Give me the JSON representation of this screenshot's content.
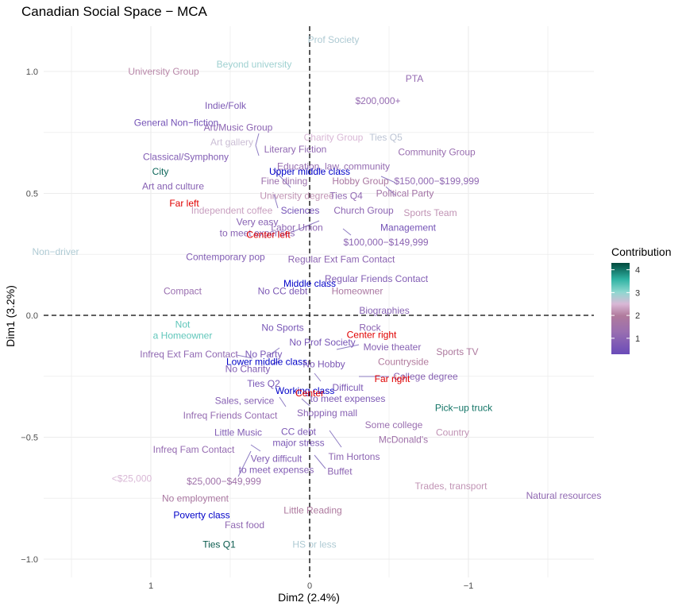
{
  "chart_data": {
    "type": "scatter",
    "title": "Canadian Social Space − MCA",
    "xlabel": "Dim2 (2.4%)",
    "ylabel": "Dim1 (3.2%)",
    "x_reversed": true,
    "xlim": [
      1.5,
      -1.78
    ],
    "ylim": [
      -1.07,
      1.18
    ],
    "x_ticks": [
      {
        "value": 1,
        "label": "1"
      },
      {
        "value": 0,
        "label": "0"
      },
      {
        "value": -1,
        "label": "−1"
      }
    ],
    "y_ticks": [
      {
        "value": 1.0,
        "label": "1.0"
      },
      {
        "value": 0.5,
        "label": "0.5"
      },
      {
        "value": 0.0,
        "label": "0.0"
      },
      {
        "value": -0.5,
        "label": "−0.5"
      },
      {
        "value": -1.0,
        "label": "−1.0"
      }
    ],
    "grid": true,
    "reference_lines": {
      "x": 0,
      "y": 0,
      "style": "dashed"
    },
    "legend": {
      "title": "Contribution",
      "placement": "right",
      "ticks": [
        1,
        2,
        3,
        4
      ],
      "range": [
        0.3,
        4.3
      ],
      "colors": [
        {
          "stop": 0.0,
          "color": "#6a4bb8"
        },
        {
          "stop": 0.25,
          "color": "#9a6fb0"
        },
        {
          "stop": 0.42,
          "color": "#b07a9c"
        },
        {
          "stop": 0.55,
          "color": "#d9b8d6"
        },
        {
          "stop": 0.68,
          "color": "#8ed8d0"
        },
        {
          "stop": 0.82,
          "color": "#2fb3a3"
        },
        {
          "stop": 1.0,
          "color": "#00493d"
        }
      ]
    },
    "points": [
      {
        "label": "Prof Society",
        "x": -0.15,
        "y": 1.13,
        "contrib": 2.8
      },
      {
        "label": "Beyond university",
        "x": 0.35,
        "y": 1.03,
        "contrib": 2.9
      },
      {
        "label": "University Group",
        "x": 0.92,
        "y": 1.0,
        "contrib": 2.1
      },
      {
        "label": "PTA",
        "x": -0.66,
        "y": 0.97,
        "contrib": 1.2
      },
      {
        "label": "$200,000+",
        "x": -0.43,
        "y": 0.88,
        "contrib": 1.2
      },
      {
        "label": "Indie/Folk",
        "x": 0.53,
        "y": 0.86,
        "contrib": 0.7
      },
      {
        "label": "General Non−fiction",
        "x": 0.84,
        "y": 0.79,
        "contrib": 0.5
      },
      {
        "label": "Art/Music Group",
        "x": 0.45,
        "y": 0.77,
        "contrib": 1.0
      },
      {
        "label": "Charity Group",
        "x": -0.15,
        "y": 0.73,
        "contrib": 2.5
      },
      {
        "label": "Ties Q5",
        "x": -0.48,
        "y": 0.73,
        "contrib": 2.7
      },
      {
        "label": "Art gallery",
        "x": 0.49,
        "y": 0.71,
        "contrib": 2.6
      },
      {
        "label": "Literary Fiction",
        "x": 0.09,
        "y": 0.68,
        "contrib": 1.1
      },
      {
        "label": "Community Group",
        "x": -0.8,
        "y": 0.67,
        "contrib": 1.3
      },
      {
        "label": "Classical/Symphony",
        "x": 0.78,
        "y": 0.65,
        "contrib": 0.8
      },
      {
        "label": "Education, law, community",
        "x": -0.15,
        "y": 0.61,
        "contrib": 1.2
      },
      {
        "label": "City",
        "x": 0.94,
        "y": 0.59,
        "contrib": 4.1
      },
      {
        "label": "Upper middle class",
        "x": 0.0,
        "y": 0.59,
        "contrib": 0.1
      },
      {
        "label": "Fine dining",
        "x": 0.16,
        "y": 0.55,
        "contrib": 1.4
      },
      {
        "label": "Hobby Group",
        "x": -0.32,
        "y": 0.55,
        "contrib": 1.8
      },
      {
        "label": "$150,000−$199,999",
        "x": -0.8,
        "y": 0.55,
        "contrib": 1.1
      },
      {
        "label": "Art and culture",
        "x": 0.86,
        "y": 0.53,
        "contrib": 0.9
      },
      {
        "label": "University degree",
        "x": 0.08,
        "y": 0.49,
        "contrib": 2.2
      },
      {
        "label": "Ties Q4",
        "x": -0.23,
        "y": 0.49,
        "contrib": 1.1
      },
      {
        "label": "Political Party",
        "x": -0.6,
        "y": 0.5,
        "contrib": 1.6
      },
      {
        "label": "Far left",
        "x": 0.79,
        "y": 0.46,
        "contrib": -1
      },
      {
        "label": "Independent coffee",
        "x": 0.49,
        "y": 0.43,
        "contrib": 2.3
      },
      {
        "label": "Sciences",
        "x": 0.06,
        "y": 0.43,
        "contrib": 0.5
      },
      {
        "label": "Church Group",
        "x": -0.34,
        "y": 0.43,
        "contrib": 1.0
      },
      {
        "label": "Sports Team",
        "x": -0.76,
        "y": 0.42,
        "contrib": 2.2
      },
      {
        "label": "Very easy\nto meet expenses",
        "x": 0.33,
        "y": 0.36,
        "contrib": 0.9
      },
      {
        "label": "Labor Union",
        "x": 0.08,
        "y": 0.36,
        "contrib": 1.0
      },
      {
        "label": "Management",
        "x": -0.62,
        "y": 0.36,
        "contrib": 0.5
      },
      {
        "label": "Center left",
        "x": 0.26,
        "y": 0.33,
        "contrib": -1
      },
      {
        "label": "$100,000−$149,999",
        "x": -0.48,
        "y": 0.3,
        "contrib": 1.0
      },
      {
        "label": "Non−driver",
        "x": 1.6,
        "y": 0.26,
        "contrib": 2.8
      },
      {
        "label": "Contemporary pop",
        "x": 0.53,
        "y": 0.24,
        "contrib": 0.8
      },
      {
        "label": "Regular Ext Fam Contact",
        "x": -0.2,
        "y": 0.23,
        "contrib": 1.0
      },
      {
        "label": "Regular Friends Contact",
        "x": -0.42,
        "y": 0.15,
        "contrib": 0.8
      },
      {
        "label": "Middle class",
        "x": 0.0,
        "y": 0.13,
        "contrib": 0.1
      },
      {
        "label": "Compact",
        "x": 0.8,
        "y": 0.1,
        "contrib": 1.3
      },
      {
        "label": "No CC debt",
        "x": 0.17,
        "y": 0.1,
        "contrib": 0.7
      },
      {
        "label": "Homeowner",
        "x": -0.3,
        "y": 0.1,
        "contrib": 1.8
      },
      {
        "label": "Biographies",
        "x": -0.47,
        "y": 0.02,
        "contrib": 0.9
      },
      {
        "label": "Not\na Homeowner",
        "x": 0.8,
        "y": -0.06,
        "contrib": 3.3
      },
      {
        "label": "No Sports",
        "x": 0.17,
        "y": -0.05,
        "contrib": 0.6
      },
      {
        "label": "Rock",
        "x": -0.38,
        "y": -0.05,
        "contrib": 1.0
      },
      {
        "label": "Center right",
        "x": -0.39,
        "y": -0.08,
        "contrib": -1
      },
      {
        "label": "No Prof Society",
        "x": -0.08,
        "y": -0.11,
        "contrib": 0.6
      },
      {
        "label": "Movie theater",
        "x": -0.52,
        "y": -0.13,
        "contrib": 0.9
      },
      {
        "label": "Sports TV",
        "x": -0.93,
        "y": -0.15,
        "contrib": 1.9
      },
      {
        "label": "Infreq Ext Fam Contact",
        "x": 0.76,
        "y": -0.16,
        "contrib": 1.1
      },
      {
        "label": "No Party",
        "x": 0.29,
        "y": -0.16,
        "contrib": 0.6
      },
      {
        "label": "Lower middle class",
        "x": 0.27,
        "y": -0.19,
        "contrib": 0.1
      },
      {
        "label": "Countryside",
        "x": -0.59,
        "y": -0.19,
        "contrib": 2.0
      },
      {
        "label": "No Hobby",
        "x": -0.09,
        "y": -0.2,
        "contrib": 0.7
      },
      {
        "label": "No Charity",
        "x": 0.39,
        "y": -0.22,
        "contrib": 0.8
      },
      {
        "label": "College degree",
        "x": -0.73,
        "y": -0.25,
        "contrib": 0.9
      },
      {
        "label": "Far right",
        "x": -0.52,
        "y": -0.26,
        "contrib": -1
      },
      {
        "label": "Ties Q2",
        "x": 0.29,
        "y": -0.28,
        "contrib": 0.6
      },
      {
        "label": "Difficult\nto meet expenses",
        "x": -0.24,
        "y": -0.32,
        "contrib": 0.7
      },
      {
        "label": "Working class",
        "x": 0.03,
        "y": -0.31,
        "contrib": 0.1
      },
      {
        "label": "Center",
        "x": 0.0,
        "y": -0.32,
        "contrib": -1
      },
      {
        "label": "Sales, service",
        "x": 0.41,
        "y": -0.35,
        "contrib": 0.9
      },
      {
        "label": "Pick−up truck",
        "x": -0.97,
        "y": -0.38,
        "contrib": 4.0
      },
      {
        "label": "Infreq Friends Contact",
        "x": 0.5,
        "y": -0.41,
        "contrib": 1.2
      },
      {
        "label": "Shopping mall",
        "x": -0.11,
        "y": -0.4,
        "contrib": 0.9
      },
      {
        "label": "Some college",
        "x": -0.53,
        "y": -0.45,
        "contrib": 1.3
      },
      {
        "label": "CC debt\nmajor stress",
        "x": 0.07,
        "y": -0.5,
        "contrib": 0.7
      },
      {
        "label": "Little Music",
        "x": 0.45,
        "y": -0.48,
        "contrib": 0.8
      },
      {
        "label": "Country",
        "x": -0.9,
        "y": -0.48,
        "contrib": 2.2
      },
      {
        "label": "McDonald's",
        "x": -0.59,
        "y": -0.51,
        "contrib": 1.5
      },
      {
        "label": "Infreq Fam Contact",
        "x": 0.73,
        "y": -0.55,
        "contrib": 1.2
      },
      {
        "label": "Tim Hortons",
        "x": -0.28,
        "y": -0.58,
        "contrib": 1.0
      },
      {
        "label": "Very difficult\nto meet expenses",
        "x": 0.21,
        "y": -0.61,
        "contrib": 0.8
      },
      {
        "label": "Buffet",
        "x": -0.19,
        "y": -0.64,
        "contrib": 1.0
      },
      {
        "label": "<$25,000",
        "x": 1.12,
        "y": -0.67,
        "contrib": 2.5
      },
      {
        "label": "$25,000−$49,999",
        "x": 0.54,
        "y": -0.68,
        "contrib": 1.5
      },
      {
        "label": "Trades,  transport",
        "x": -0.89,
        "y": -0.7,
        "contrib": 2.2
      },
      {
        "label": "Natural resources",
        "x": -1.6,
        "y": -0.74,
        "contrib": 1.1
      },
      {
        "label": "No employment",
        "x": 0.72,
        "y": -0.75,
        "contrib": 1.8
      },
      {
        "label": "Little Reading",
        "x": -0.02,
        "y": -0.8,
        "contrib": 1.9
      },
      {
        "label": "Poverty class",
        "x": 0.68,
        "y": -0.82,
        "contrib": 0.1
      },
      {
        "label": "Fast food",
        "x": 0.41,
        "y": -0.86,
        "contrib": 1.1
      },
      {
        "label": "Ties Q1",
        "x": 0.57,
        "y": -0.94,
        "contrib": 4.2
      },
      {
        "label": "HS or less",
        "x": -0.03,
        "y": -0.94,
        "contrib": 2.8
      }
    ],
    "special_colors": {
      "political": "#e00000",
      "class": "#0000c8"
    },
    "class_labels": [
      "Upper middle class",
      "Middle class",
      "Lower middle class",
      "Working class",
      "Poverty class"
    ],
    "political_labels": [
      "Far left",
      "Center left",
      "Center",
      "Center right",
      "Far right"
    ]
  }
}
